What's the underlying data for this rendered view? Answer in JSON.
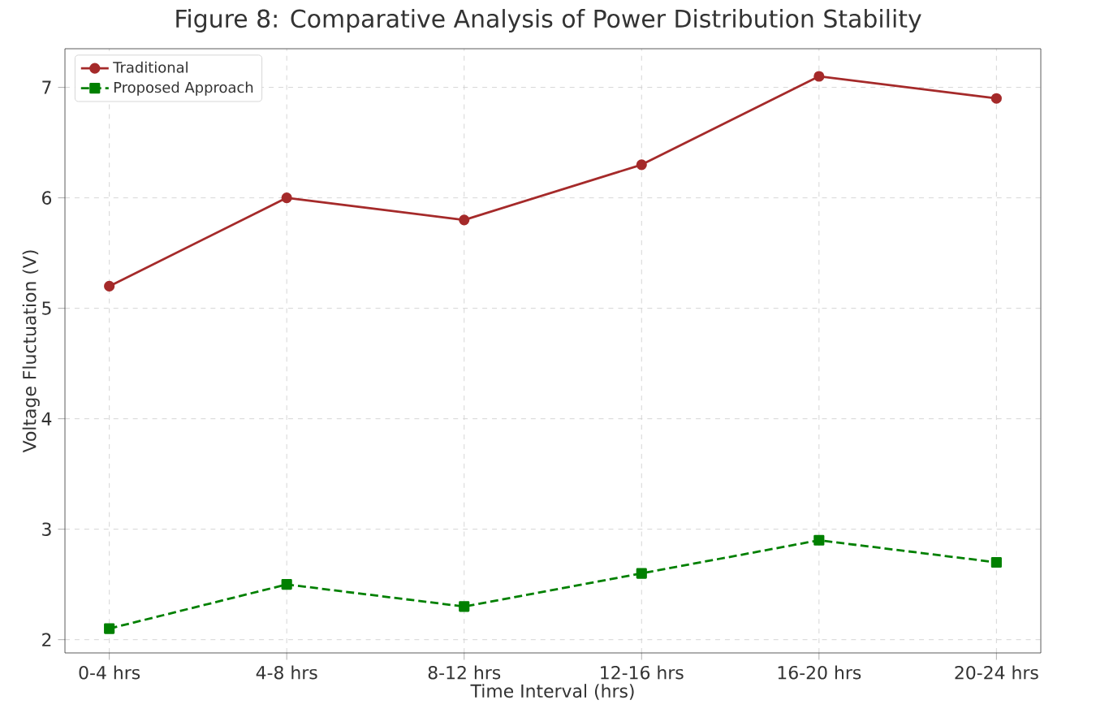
{
  "chart_data": {
    "type": "line",
    "title": "Figure 8: Comparative Analysis of Power Distribution Stability",
    "xlabel": "Time Interval (hrs)",
    "ylabel": "Voltage Fluctuation (V)",
    "categories": [
      "0-4 hrs",
      "4-8 hrs",
      "8-12 hrs",
      "12-16 hrs",
      "16-20 hrs",
      "20-24 hrs"
    ],
    "series": [
      {
        "name": "Traditional",
        "color": "#a52a2a",
        "values": [
          5.2,
          6.0,
          5.8,
          6.3,
          7.1,
          6.9
        ],
        "marker": "circle",
        "line_style": "solid"
      },
      {
        "name": "Proposed Approach",
        "color": "#008000",
        "values": [
          2.1,
          2.5,
          2.3,
          2.6,
          2.9,
          2.7
        ],
        "marker": "square",
        "line_style": "dashed"
      }
    ],
    "ylim": [
      1.88,
      7.35
    ],
    "yticks": [
      2,
      3,
      4,
      5,
      6,
      7
    ],
    "grid": true,
    "legend": "top left"
  }
}
